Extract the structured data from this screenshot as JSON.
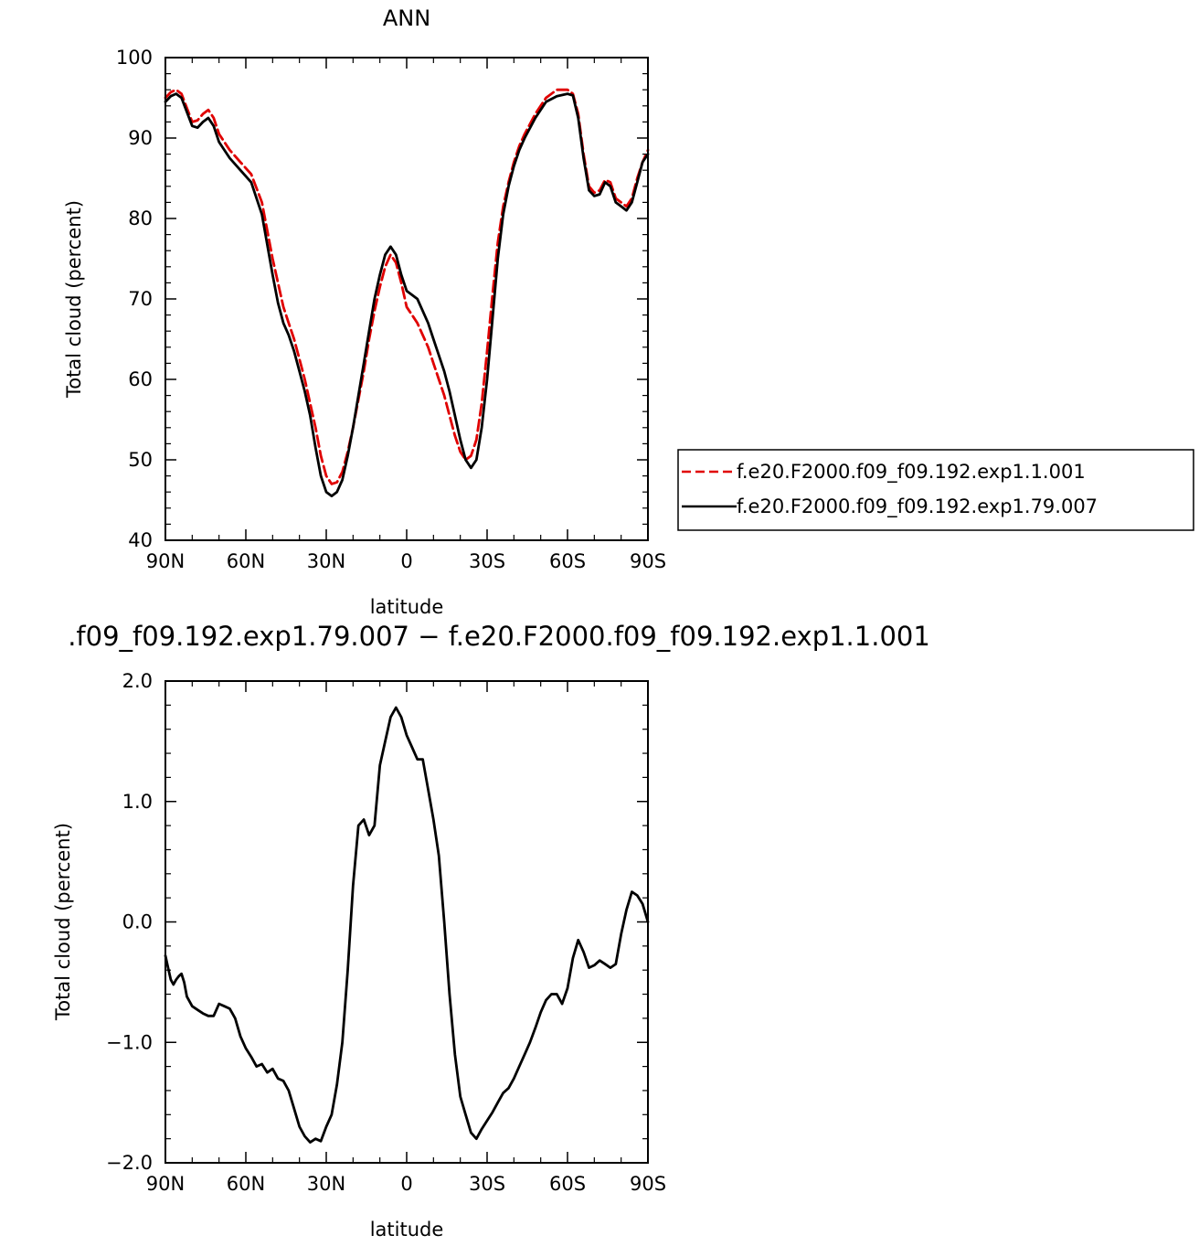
{
  "chart_data": [
    {
      "type": "line",
      "title": "ANN",
      "xlabel": "latitude",
      "ylabel": "Total cloud (percent)",
      "xlim": [
        90,
        -90
      ],
      "ylim": [
        40,
        100
      ],
      "x_ticks": [
        90,
        60,
        30,
        0,
        -30,
        -60,
        -90
      ],
      "x_tick_labels": [
        "90N",
        "60N",
        "30N",
        "0",
        "30S",
        "60S",
        "90S"
      ],
      "y_ticks": [
        40,
        50,
        60,
        70,
        80,
        90,
        100
      ],
      "y_tick_labels": [
        "40",
        "50",
        "60",
        "70",
        "80",
        "90",
        "100"
      ],
      "grid": false,
      "legend_position": "right",
      "series": [
        {
          "name": "f.e20.F2000.f09_f09.192.exp1.1.001",
          "color": "#e00000",
          "dash": "dashed",
          "x": [
            90,
            88,
            86,
            84,
            80,
            78,
            76,
            74,
            72,
            70,
            66,
            62,
            58,
            54,
            50,
            48,
            46,
            44,
            42,
            40,
            38,
            36,
            34,
            32,
            30,
            28,
            26,
            24,
            22,
            20,
            18,
            16,
            14,
            12,
            10,
            8,
            6,
            4,
            2,
            0,
            -2,
            -4,
            -6,
            -8,
            -10,
            -12,
            -14,
            -16,
            -18,
            -20,
            -22,
            -24,
            -26,
            -28,
            -30,
            -32,
            -34,
            -36,
            -38,
            -40,
            -42,
            -44,
            -48,
            -52,
            -56,
            -60,
            -62,
            -64,
            -66,
            -68,
            -70,
            -72,
            -74,
            -76,
            -78,
            -80,
            -82,
            -84,
            -86,
            -88,
            -90
          ],
          "y": [
            95,
            95.7,
            96,
            95.5,
            92,
            92.2,
            93,
            93.5,
            92.5,
            90.5,
            88.5,
            87,
            85.5,
            82,
            75,
            72,
            69,
            67,
            65,
            62.5,
            60,
            57,
            54,
            50.5,
            48,
            47,
            47.2,
            48.5,
            51,
            54,
            57.5,
            61,
            65,
            68.5,
            71.5,
            74,
            75.5,
            74.5,
            72,
            69,
            68,
            67,
            65.5,
            64,
            62,
            60,
            58,
            55.5,
            53,
            51,
            50,
            50.5,
            52.5,
            57,
            63.5,
            70.5,
            77,
            81.5,
            84.5,
            87,
            89,
            90.5,
            93,
            95,
            96,
            96,
            95.5,
            93,
            88,
            84,
            83.2,
            83.5,
            84.8,
            84.5,
            82.5,
            82,
            81.5,
            82.5,
            85,
            87,
            88.5
          ]
        },
        {
          "name": "f.e20.F2000.f09_f09.192.exp1.79.007",
          "color": "#000000",
          "dash": "solid",
          "x": [
            90,
            88,
            86,
            84,
            80,
            78,
            76,
            74,
            72,
            70,
            66,
            62,
            58,
            54,
            50,
            48,
            46,
            44,
            42,
            40,
            38,
            36,
            34,
            32,
            30,
            28,
            26,
            24,
            22,
            20,
            18,
            16,
            14,
            12,
            10,
            8,
            6,
            4,
            2,
            0,
            -2,
            -4,
            -6,
            -8,
            -10,
            -12,
            -14,
            -16,
            -18,
            -20,
            -22,
            -24,
            -26,
            -28,
            -30,
            -32,
            -34,
            -36,
            -38,
            -40,
            -42,
            -44,
            -48,
            -52,
            -56,
            -60,
            -62,
            -64,
            -66,
            -68,
            -70,
            -72,
            -74,
            -76,
            -78,
            -80,
            -82,
            -84,
            -86,
            -88,
            -90
          ],
          "y": [
            94.5,
            95.2,
            95.5,
            95,
            91.5,
            91.3,
            92,
            92.5,
            91.5,
            89.5,
            87.5,
            86,
            84.5,
            80.5,
            73,
            69.5,
            67,
            65.5,
            63.5,
            61,
            58.5,
            55.5,
            51.5,
            48,
            46,
            45.5,
            46,
            47.5,
            50.5,
            54,
            58,
            62,
            66,
            70,
            73,
            75.5,
            76.5,
            75.5,
            73,
            71,
            70.5,
            70,
            68.5,
            67,
            65,
            63,
            61,
            58.5,
            55.5,
            52.5,
            50,
            49,
            50,
            54,
            60,
            67.5,
            75,
            80.5,
            84,
            86.5,
            88.5,
            90,
            92.5,
            94.5,
            95.2,
            95.5,
            95.3,
            92.5,
            87.5,
            83.5,
            82.8,
            83,
            84.5,
            84,
            82,
            81.5,
            81,
            82,
            84.5,
            87,
            88
          ]
        }
      ]
    },
    {
      "type": "line",
      "title": ".f09_f09.192.exp1.79.007 − f.e20.F2000.f09_f09.192.exp1.1.001",
      "xlabel": "latitude",
      "ylabel": "Total cloud (percent)",
      "xlim": [
        90,
        -90
      ],
      "ylim": [
        -2.0,
        2.0
      ],
      "x_ticks": [
        90,
        60,
        30,
        0,
        -30,
        -60,
        -90
      ],
      "x_tick_labels": [
        "90N",
        "60N",
        "30N",
        "0",
        "30S",
        "60S",
        "90S"
      ],
      "y_ticks": [
        -2.0,
        -1.0,
        0.0,
        1.0,
        2.0
      ],
      "y_tick_labels": [
        "−2.0",
        "−1.0",
        "0.0",
        "1.0",
        "2.0"
      ],
      "grid": false,
      "series": [
        {
          "color": "#000000",
          "dash": "solid",
          "x": [
            90,
            89,
            88,
            87,
            86,
            85,
            84,
            83,
            82,
            80,
            78,
            76,
            74,
            72,
            70,
            68,
            66,
            64,
            62,
            60,
            58,
            56,
            54,
            52,
            50,
            48,
            46,
            44,
            42,
            40,
            38,
            36,
            34,
            32,
            30,
            28,
            26,
            24,
            22,
            20,
            18,
            16,
            14,
            12,
            10,
            8,
            6,
            4,
            2,
            0,
            -2,
            -4,
            -6,
            -8,
            -10,
            -12,
            -14,
            -16,
            -18,
            -20,
            -22,
            -24,
            -26,
            -28,
            -30,
            -32,
            -34,
            -36,
            -38,
            -40,
            -42,
            -44,
            -46,
            -48,
            -50,
            -52,
            -54,
            -56,
            -58,
            -60,
            -62,
            -64,
            -66,
            -68,
            -70,
            -72,
            -74,
            -76,
            -78,
            -80,
            -82,
            -84,
            -86,
            -88,
            -90
          ],
          "y": [
            -0.28,
            -0.38,
            -0.48,
            -0.52,
            -0.48,
            -0.45,
            -0.43,
            -0.5,
            -0.62,
            -0.7,
            -0.73,
            -0.76,
            -0.78,
            -0.78,
            -0.68,
            -0.7,
            -0.72,
            -0.8,
            -0.95,
            -1.05,
            -1.12,
            -1.2,
            -1.18,
            -1.25,
            -1.22,
            -1.3,
            -1.32,
            -1.4,
            -1.55,
            -1.7,
            -1.78,
            -1.83,
            -1.8,
            -1.82,
            -1.7,
            -1.6,
            -1.35,
            -1.0,
            -0.4,
            0.3,
            0.8,
            0.85,
            0.72,
            0.8,
            1.3,
            1.5,
            1.7,
            1.78,
            1.7,
            1.55,
            1.45,
            1.35,
            1.35,
            1.1,
            0.85,
            0.55,
            0.0,
            -0.6,
            -1.1,
            -1.45,
            -1.6,
            -1.75,
            -1.8,
            -1.72,
            -1.65,
            -1.58,
            -1.5,
            -1.42,
            -1.38,
            -1.3,
            -1.2,
            -1.1,
            -1.0,
            -0.88,
            -0.75,
            -0.65,
            -0.6,
            -0.6,
            -0.68,
            -0.55,
            -0.3,
            -0.15,
            -0.25,
            -0.38,
            -0.36,
            -0.32,
            -0.35,
            -0.38,
            -0.35,
            -0.1,
            0.1,
            0.25,
            0.22,
            0.15,
            0.0
          ]
        }
      ]
    }
  ]
}
